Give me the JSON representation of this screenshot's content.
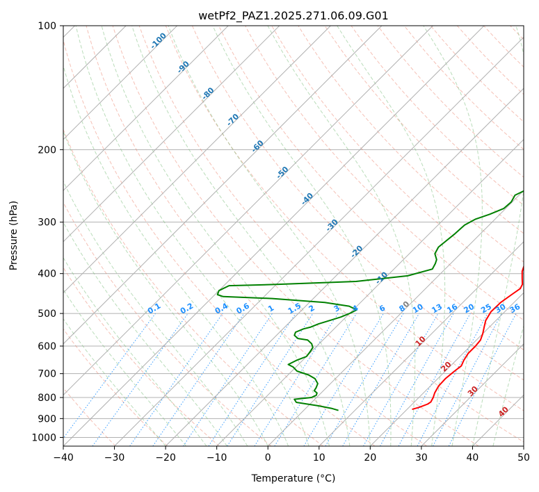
{
  "chart_data": {
    "type": "line",
    "title": "wetPf2_PAZ1.2025.271.06.09.G01",
    "xlabel": "Temperature (°C)",
    "ylabel": "Pressure (hPa)",
    "xlim": [
      -40,
      50
    ],
    "ylim": [
      1050,
      100
    ],
    "y_scale": "log",
    "grid": true,
    "x_ticks": [
      -40,
      -30,
      -20,
      -10,
      0,
      10,
      20,
      30,
      40,
      50
    ],
    "y_ticks": [
      100,
      200,
      300,
      400,
      500,
      600,
      700,
      800,
      900,
      1000
    ],
    "x_tick_labels": [
      "−40",
      "−30",
      "−20",
      "−10",
      "0",
      "10",
      "20",
      "30",
      "40",
      "50"
    ],
    "y_tick_labels": [
      "100",
      "200",
      "300",
      "400",
      "500",
      "600",
      "700",
      "800",
      "900",
      "1000"
    ],
    "colors": {
      "temperature": "#ff0000",
      "dewpoint": "#008000",
      "dry_adiabat": "#e8735a",
      "moist_adiabat": "#7fbf7f",
      "mixing_ratio": "#1e90ff",
      "dry_adiabat_label": "#cc2222",
      "isotherm_label": "#1f77b4",
      "isotherm_zero_label": "#808080",
      "grid": "#b0b0b0"
    },
    "series": [
      {
        "name": "Temperature",
        "color": "#ff0000",
        "points": [
          [
            21.0,
            855
          ],
          [
            22.0,
            845
          ],
          [
            23.0,
            830
          ],
          [
            23.2,
            820
          ],
          [
            22.8,
            800
          ],
          [
            22.2,
            780
          ],
          [
            21.6,
            750
          ],
          [
            21.5,
            720
          ],
          [
            21.8,
            690
          ],
          [
            22.1,
            670
          ],
          [
            21.5,
            650
          ],
          [
            21.0,
            625
          ],
          [
            21.0,
            600
          ],
          [
            20.8,
            580
          ],
          [
            20.0,
            560
          ],
          [
            19.0,
            540
          ],
          [
            18.0,
            520
          ],
          [
            17.3,
            495
          ],
          [
            17.4,
            470
          ],
          [
            18.0,
            450
          ],
          [
            18.5,
            435
          ],
          [
            18.1,
            425
          ],
          [
            16.8,
            410
          ],
          [
            15.5,
            395
          ],
          [
            14.0,
            370
          ],
          [
            12.0,
            340
          ],
          [
            10.5,
            315
          ],
          [
            9.0,
            295
          ],
          [
            7.6,
            275
          ],
          [
            6.2,
            260
          ],
          [
            6.0,
            250
          ],
          [
            5.5,
            242
          ],
          [
            4.0,
            230
          ],
          [
            2.5,
            217
          ],
          [
            1.0,
            200
          ],
          [
            0.0,
            186
          ],
          [
            -0.6,
            172
          ],
          [
            -0.8,
            160
          ],
          [
            -0.5,
            150
          ],
          [
            0.5,
            141
          ],
          [
            2.5,
            135
          ],
          [
            5.0,
            129
          ],
          [
            8.0,
            123
          ],
          [
            9.4,
            115
          ],
          [
            9.0,
            108
          ],
          [
            8.5,
            102
          ],
          [
            8.5,
            100
          ]
        ]
      },
      {
        "name": "Dewpoint",
        "color": "#008000",
        "points": [
          [
            6.8,
            860
          ],
          [
            5.0,
            850
          ],
          [
            2.0,
            838
          ],
          [
            -3.0,
            822
          ],
          [
            -4.0,
            808
          ],
          [
            -1.0,
            800
          ],
          [
            -0.5,
            790
          ],
          [
            -0.8,
            780
          ],
          [
            -1.8,
            770
          ],
          [
            -2.0,
            758
          ],
          [
            -2.5,
            740
          ],
          [
            -4.0,
            720
          ],
          [
            -6.0,
            705
          ],
          [
            -9.0,
            690
          ],
          [
            -10.5,
            675
          ],
          [
            -12.0,
            665
          ],
          [
            -11.2,
            650
          ],
          [
            -10.0,
            636
          ],
          [
            -10.2,
            620
          ],
          [
            -10.5,
            605
          ],
          [
            -11.5,
            592
          ],
          [
            -13.0,
            580
          ],
          [
            -15.2,
            575
          ],
          [
            -16.5,
            565
          ],
          [
            -16.9,
            555
          ],
          [
            -16.0,
            545
          ],
          [
            -15.0,
            540
          ],
          [
            -14.0,
            530
          ],
          [
            -12.5,
            520
          ],
          [
            -11.0,
            510
          ],
          [
            -10.0,
            500
          ],
          [
            -9.3,
            490
          ],
          [
            -11.5,
            480
          ],
          [
            -17.0,
            470
          ],
          [
            -28.0,
            460
          ],
          [
            -38.0,
            455
          ],
          [
            -39.5,
            450
          ],
          [
            -40.0,
            440
          ],
          [
            -39.0,
            428
          ],
          [
            -30.0,
            425
          ],
          [
            -15.0,
            418
          ],
          [
            -6.0,
            405
          ],
          [
            -2.5,
            390
          ],
          [
            -3.0,
            378
          ],
          [
            -3.5,
            370
          ],
          [
            -5.0,
            358
          ],
          [
            -5.6,
            345
          ],
          [
            -5.0,
            320
          ],
          [
            -4.8,
            305
          ],
          [
            -3.8,
            295
          ],
          [
            -2.0,
            287
          ],
          [
            -0.4,
            278
          ],
          [
            -0.2,
            268
          ],
          [
            -0.8,
            258
          ],
          [
            0.4,
            250
          ],
          [
            2.2,
            240
          ],
          [
            3.3,
            230
          ],
          [
            3.9,
            215
          ],
          [
            3.6,
            200
          ],
          [
            2.5,
            190
          ],
          [
            0.5,
            180
          ],
          [
            -0.5,
            172
          ],
          [
            -0.8,
            162
          ],
          [
            -0.2,
            153
          ],
          [
            -1.1,
            145
          ],
          [
            -1.3,
            135
          ],
          [
            -0.5,
            127
          ],
          [
            0.5,
            120
          ],
          [
            1.5,
            112
          ],
          [
            2.2,
            105
          ],
          [
            2.5,
            100
          ]
        ]
      }
    ],
    "isotherm_labels": [
      "-100",
      "-90",
      "-80",
      "-70",
      "-60",
      "-50",
      "-40",
      "-30",
      "-20",
      "-10",
      "0"
    ],
    "isotherm_label_values": [
      -100,
      -90,
      -80,
      -70,
      -60,
      -50,
      -40,
      -30,
      -20,
      -10,
      0
    ],
    "dry_adiabat_labels": [
      "10",
      "20",
      "30",
      "40"
    ],
    "dry_adiabat_label_values": [
      10,
      20,
      30,
      40
    ],
    "mixing_ratio_labels": [
      "0.1",
      "0.2",
      "0.4",
      "0.6",
      "1",
      "1.5",
      "2",
      "3",
      "4",
      "6",
      "8",
      "10",
      "13",
      "16",
      "20",
      "25",
      "30",
      "36"
    ],
    "mixing_ratio_values": [
      0.1,
      0.2,
      0.4,
      0.6,
      1,
      1.5,
      2,
      3,
      4,
      6,
      8,
      10,
      13,
      16,
      20,
      25,
      30,
      36
    ]
  }
}
